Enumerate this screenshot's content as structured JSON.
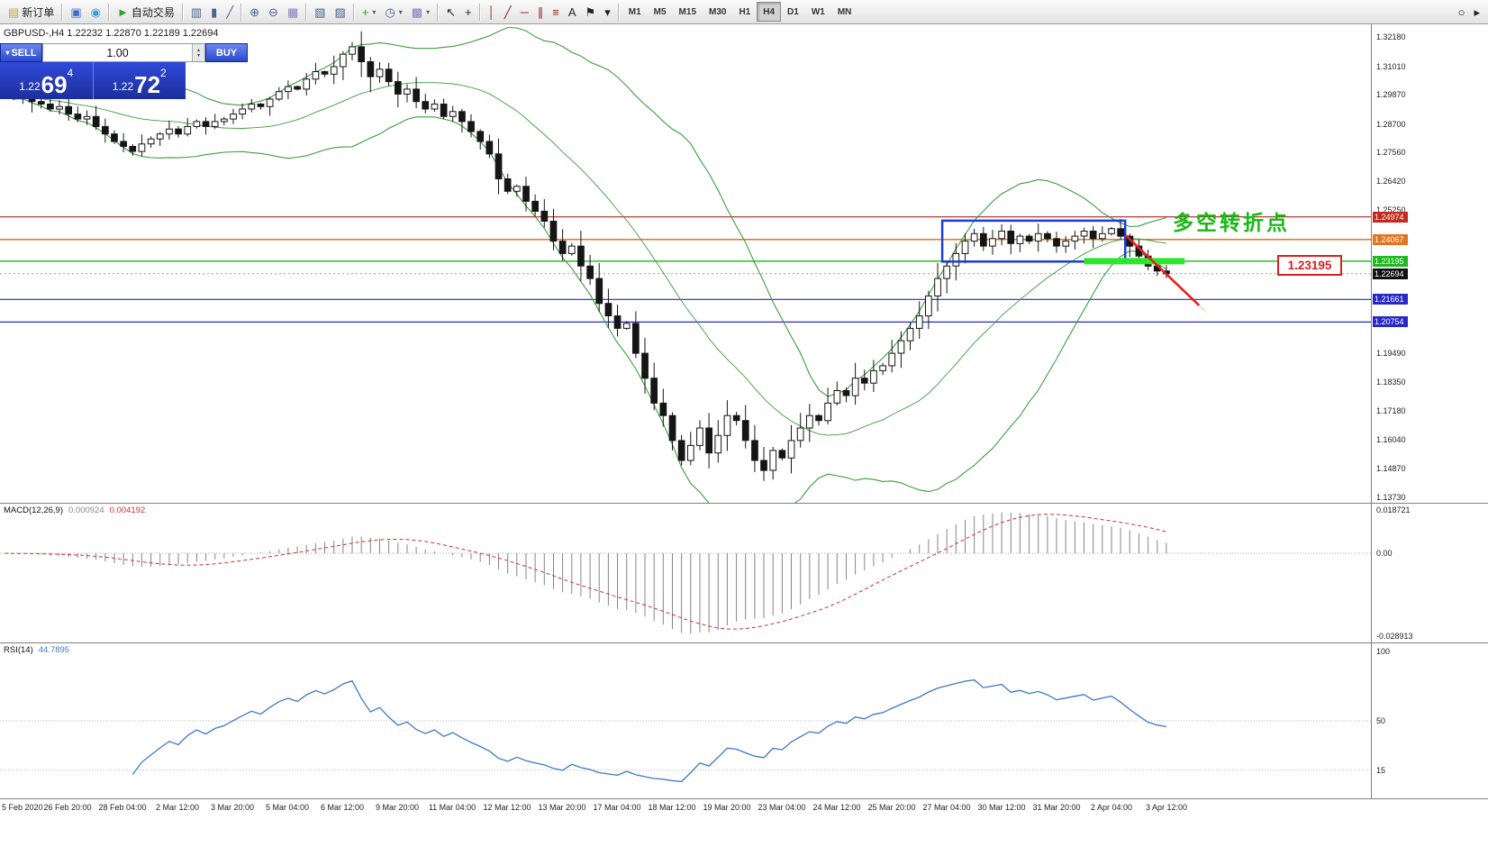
{
  "toolbar": {
    "groups": [
      {
        "items": [
          {
            "name": "new-order",
            "glyph": "▤",
            "glyph_color": "#c8a23c",
            "label": "新订单"
          }
        ]
      },
      {
        "items": [
          {
            "name": "market-watch",
            "glyph": "▣",
            "glyph_color": "#3c6cc8"
          },
          {
            "name": "community",
            "glyph": "◉",
            "glyph_color": "#38a0d8"
          }
        ]
      },
      {
        "items": [
          {
            "name": "autotrading",
            "glyph": "►",
            "glyph_color": "#2da02d",
            "label": "自动交易"
          }
        ]
      },
      {
        "items": [
          {
            "name": "chart-bars",
            "glyph": "▥",
            "glyph_color": "#48638f"
          },
          {
            "name": "chart-candlesticks",
            "glyph": "▮",
            "glyph_color": "#48638f"
          },
          {
            "name": "chart-line",
            "glyph": "╱",
            "glyph_color": "#48638f"
          }
        ]
      },
      {
        "items": [
          {
            "name": "zoom-in",
            "glyph": "⊕",
            "glyph_color": "#48638f"
          },
          {
            "name": "zoom-out",
            "glyph": "⊖",
            "glyph_color": "#48638f"
          },
          {
            "name": "tile-windows",
            "glyph": "▦",
            "glyph_color": "#8a7ab8"
          }
        ]
      },
      {
        "items": [
          {
            "name": "navigator",
            "glyph": "▧",
            "glyph_color": "#48638f"
          },
          {
            "name": "terminal",
            "glyph": "▨",
            "glyph_color": "#48638f"
          }
        ]
      },
      {
        "items": [
          {
            "name": "indicators",
            "glyph": "+",
            "glyph_color": "#2da02d",
            "dropdown": true
          },
          {
            "name": "periods",
            "glyph": "◷",
            "glyph_color": "#48638f",
            "dropdown": true
          },
          {
            "name": "templates",
            "glyph": "▩",
            "glyph_color": "#8a7ab8",
            "dropdown": true
          }
        ]
      },
      {
        "items": [
          {
            "name": "cursor",
            "glyph": "↖",
            "glyph_color": "#222222"
          },
          {
            "name": "crosshair",
            "glyph": "+",
            "glyph_color": "#222222"
          }
        ]
      },
      {
        "items": [
          {
            "name": "vertical-line",
            "glyph": "│",
            "glyph_color": "#8a2020"
          },
          {
            "name": "trendline",
            "glyph": "╱",
            "glyph_color": "#8a2020"
          },
          {
            "name": "horizontal-line",
            "glyph": "─",
            "glyph_color": "#8a2020"
          },
          {
            "name": "equidistant-channel",
            "glyph": "∥",
            "glyph_color": "#8a2020"
          },
          {
            "name": "fibonacci",
            "glyph": "≡",
            "glyph_color": "#8a2020"
          },
          {
            "name": "text",
            "glyph": "A",
            "glyph_color": "#222222"
          },
          {
            "name": "arrow-label",
            "glyph": "⚑",
            "glyph_color": "#222222"
          },
          {
            "name": "shapes",
            "glyph": "▾",
            "glyph_color": "#222222"
          }
        ]
      }
    ],
    "timeframes": [
      "M1",
      "M5",
      "M15",
      "M30",
      "H1",
      "H4",
      "D1",
      "W1",
      "MN"
    ],
    "active_timeframe": "H4",
    "right_icons": [
      {
        "name": "search",
        "glyph": "○"
      },
      {
        "name": "chart-forward",
        "glyph": "▸"
      }
    ]
  },
  "trade_panel": {
    "sell_label": "SELL",
    "buy_label": "BUY",
    "volume": "1.00",
    "sell_price_prefix": "1.22",
    "sell_price_big": "69",
    "sell_price_sup": "4",
    "buy_price_prefix": "1.22",
    "buy_price_big": "72",
    "buy_price_sup": "2"
  },
  "chart": {
    "symbol_info": "GBPUSD-,H4  1.22232 1.22870 1.22189 1.22694"
  },
  "annotations": {
    "pivot_label": "多空转折点",
    "price_callout": "1.23195"
  },
  "price_axis": {
    "normal": [
      "1.32180",
      "1.31010",
      "1.29870",
      "1.28700",
      "1.27560",
      "1.26420",
      "1.25250",
      "1.19490",
      "1.18350",
      "1.17180",
      "1.16040",
      "1.14870",
      "1.13730"
    ],
    "badges": [
      {
        "text": "1.24974",
        "bg": "#c22a1e"
      },
      {
        "text": "1.24067",
        "bg": "#e0761e"
      },
      {
        "text": "1.23195",
        "bg": "#1fb81f"
      },
      {
        "text": "1.22694",
        "bg": "#101010"
      },
      {
        "text": "1.21661",
        "bg": "#2828c8"
      },
      {
        "text": "1.20754",
        "bg": "#2828c8"
      }
    ]
  },
  "macd": {
    "name": "MACD(12,26,9)",
    "value_main": "0.000924",
    "value_signal": "0.004192",
    "scale_top": "0.018721",
    "scale_mid": "0.00",
    "scale_bottom": "-0.028913"
  },
  "rsi": {
    "name": "RSI(14)",
    "value": "44.7895",
    "scale": [
      "100",
      "50",
      "15"
    ]
  },
  "chart_data": {
    "type": "candlestick",
    "symbol": "GBPUSD-",
    "timeframe": "H4",
    "ohlc_current": {
      "open": 1.22232,
      "high": 1.2287,
      "low": 1.22189,
      "close": 1.22694
    },
    "current_price": 1.22694,
    "ylim": [
      1.135,
      1.327
    ],
    "first_open": 1.299,
    "closes": [
      1.2985,
      1.2975,
      1.299,
      1.296,
      1.295,
      1.293,
      1.294,
      1.291,
      1.289,
      1.29,
      1.286,
      1.283,
      1.28,
      1.278,
      1.276,
      1.279,
      1.281,
      1.283,
      1.285,
      1.283,
      1.286,
      1.288,
      1.286,
      1.288,
      1.289,
      1.291,
      1.293,
      1.295,
      1.294,
      1.297,
      1.3,
      1.302,
      1.301,
      1.305,
      1.308,
      1.307,
      1.31,
      1.315,
      1.318,
      1.312,
      1.306,
      1.309,
      1.304,
      1.299,
      1.301,
      1.296,
      1.293,
      1.295,
      1.29,
      1.292,
      1.288,
      1.284,
      1.28,
      1.275,
      1.265,
      1.26,
      1.262,
      1.256,
      1.252,
      1.248,
      1.24,
      1.235,
      1.238,
      1.23,
      1.225,
      1.215,
      1.21,
      1.205,
      1.207,
      1.195,
      1.185,
      1.175,
      1.17,
      1.16,
      1.152,
      1.158,
      1.165,
      1.155,
      1.162,
      1.17,
      1.168,
      1.16,
      1.152,
      1.148,
      1.156,
      1.153,
      1.16,
      1.165,
      1.17,
      1.168,
      1.175,
      1.18,
      1.178,
      1.185,
      1.183,
      1.188,
      1.19,
      1.195,
      1.2,
      1.205,
      1.21,
      1.218,
      1.225,
      1.23,
      1.235,
      1.24,
      1.243,
      1.238,
      1.241,
      1.244,
      1.239,
      1.242,
      1.24,
      1.243,
      1.241,
      1.238,
      1.24,
      1.242,
      1.244,
      1.241,
      1.243,
      1.245,
      1.242,
      1.238,
      1.234,
      1.23,
      1.228,
      1.2269
    ],
    "hlines": [
      {
        "price": 1.24974,
        "color": "#b22222",
        "width": 1.2
      },
      {
        "price": 1.24067,
        "color": "#e0761e",
        "width": 1.5
      },
      {
        "price": 1.23195,
        "color": "#2db82d",
        "width": 1.5
      },
      {
        "price": 1.21661,
        "color": "#2828c8",
        "width": 1.2
      },
      {
        "price": 1.20754,
        "color": "#2828c8",
        "width": 1.2
      }
    ],
    "indicators": {
      "bollinger": {
        "period": 20,
        "deviation": 2,
        "color": "#3d9c3d"
      },
      "macd": {
        "fast": 12,
        "slow": 26,
        "signal": 9
      },
      "rsi": {
        "period": 14
      }
    },
    "shapes": {
      "blue_rect": {
        "from_candle": 103,
        "to_candle": 122,
        "top": 1.2482,
        "bottom": 1.2318,
        "color": "#1b3fd4"
      },
      "green_bar": {
        "from_candle": 118,
        "to_candle": 129,
        "price": 1.23195,
        "color": "#2ce62c"
      },
      "red_arrow": {
        "from": [
          122.5,
          1.2425
        ],
        "to": [
          131.5,
          1.211
        ],
        "color": "#e81c1c"
      }
    },
    "time_labels": [
      "5 Feb 2020",
      "26 Feb 20:00",
      "28 Feb 04:00",
      "2 Mar 12:00",
      "3 Mar 20:00",
      "5 Mar 04:00",
      "6 Mar 12:00",
      "9 Mar 20:00",
      "11 Mar 04:00",
      "12 Mar 12:00",
      "13 Mar 20:00",
      "17 Mar 04:00",
      "18 Mar 12:00",
      "19 Mar 20:00",
      "23 Mar 04:00",
      "24 Mar 12:00",
      "25 Mar 20:00",
      "27 Mar 04:00",
      "30 Mar 12:00",
      "31 Mar 20:00",
      "2 Apr 04:00",
      "3 Apr 12:00"
    ]
  }
}
